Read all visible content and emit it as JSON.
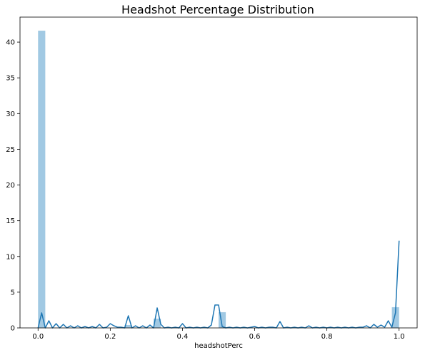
{
  "chart_data": {
    "type": "histogram+kde",
    "title": "Headshot Percentage Distribution",
    "xlabel": "headshotPerc",
    "ylabel": "",
    "xlim": [
      -0.05,
      1.05
    ],
    "ylim": [
      0,
      43.5
    ],
    "x_ticks": [
      "0.0",
      "0.2",
      "0.4",
      "0.6",
      "0.8",
      "1.0"
    ],
    "y_ticks": [
      "0",
      "5",
      "10",
      "15",
      "20",
      "25",
      "30",
      "35",
      "40"
    ],
    "grid": false,
    "bar_color": "#a1c9e3",
    "line_color": "#1f77b4",
    "histogram": {
      "bins": [
        {
          "x0": 0.0,
          "x1": 0.02,
          "value": 41.6
        },
        {
          "x0": 0.24,
          "x1": 0.26,
          "value": 0.4
        },
        {
          "x0": 0.32,
          "x1": 0.34,
          "value": 1.3
        },
        {
          "x0": 0.5,
          "x1": 0.52,
          "value": 2.2
        },
        {
          "x0": 0.98,
          "x1": 1.0,
          "value": 2.9
        }
      ]
    },
    "kde": {
      "x": [
        0.0,
        0.01,
        0.02,
        0.03,
        0.04,
        0.05,
        0.06,
        0.07,
        0.08,
        0.09,
        0.1,
        0.11,
        0.12,
        0.13,
        0.14,
        0.15,
        0.16,
        0.17,
        0.18,
        0.19,
        0.2,
        0.21,
        0.22,
        0.23,
        0.24,
        0.25,
        0.26,
        0.27,
        0.28,
        0.29,
        0.3,
        0.31,
        0.32,
        0.33,
        0.34,
        0.35,
        0.36,
        0.37,
        0.38,
        0.39,
        0.4,
        0.41,
        0.42,
        0.43,
        0.44,
        0.45,
        0.46,
        0.47,
        0.48,
        0.49,
        0.5,
        0.51,
        0.52,
        0.53,
        0.54,
        0.55,
        0.56,
        0.57,
        0.58,
        0.59,
        0.6,
        0.61,
        0.62,
        0.63,
        0.64,
        0.65,
        0.66,
        0.67,
        0.68,
        0.69,
        0.7,
        0.71,
        0.72,
        0.73,
        0.74,
        0.75,
        0.76,
        0.77,
        0.78,
        0.79,
        0.8,
        0.81,
        0.82,
        0.83,
        0.84,
        0.85,
        0.86,
        0.87,
        0.88,
        0.89,
        0.9,
        0.91,
        0.92,
        0.93,
        0.94,
        0.95,
        0.96,
        0.97,
        0.98,
        0.99,
        1.0
      ],
      "y": [
        0.0,
        2.1,
        0.0,
        1.0,
        0.0,
        0.6,
        0.0,
        0.5,
        0.0,
        0.3,
        0.0,
        0.3,
        0.0,
        0.2,
        0.0,
        0.2,
        0.0,
        0.5,
        0.0,
        0.1,
        0.6,
        0.3,
        0.1,
        0.1,
        0.0,
        1.7,
        0.0,
        0.3,
        0.0,
        0.3,
        0.0,
        0.4,
        0.0,
        2.8,
        0.5,
        0.0,
        0.1,
        0.0,
        0.1,
        0.0,
        0.6,
        0.0,
        0.1,
        0.0,
        0.1,
        0.0,
        0.1,
        0.0,
        0.4,
        3.2,
        3.2,
        0.2,
        0.0,
        0.1,
        0.0,
        0.1,
        0.0,
        0.1,
        0.0,
        0.1,
        0.2,
        0.0,
        0.1,
        0.0,
        0.1,
        0.1,
        0.0,
        0.9,
        0.0,
        0.1,
        0.0,
        0.1,
        0.0,
        0.1,
        0.0,
        0.3,
        0.0,
        0.1,
        0.0,
        0.1,
        0.0,
        0.1,
        0.0,
        0.1,
        0.0,
        0.1,
        0.0,
        0.1,
        0.0,
        0.1,
        0.1,
        0.3,
        0.0,
        0.5,
        0.1,
        0.4,
        0.1,
        1.0,
        0.1,
        2.1,
        12.2
      ]
    }
  }
}
